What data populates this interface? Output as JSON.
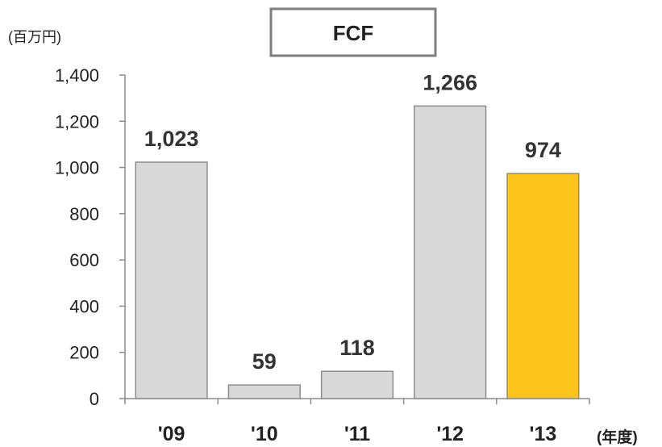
{
  "chart_data": {
    "type": "bar",
    "title": "FCF",
    "ylabel": "(百万円)",
    "xlabel": "(年度)",
    "categories": [
      "'09",
      "'10",
      "'11",
      "'12",
      "'13"
    ],
    "values": [
      1023,
      59,
      118,
      1266,
      974
    ],
    "value_labels": [
      "1,023",
      "59",
      "118",
      "1,266",
      "974"
    ],
    "ylim": [
      0,
      1400
    ],
    "yticks": [
      "0",
      "200",
      "400",
      "600",
      "800",
      "1,000",
      "1,200",
      "1,400"
    ],
    "bar_colors": [
      "#d9d9d9",
      "#d9d9d9",
      "#d9d9d9",
      "#d9d9d9",
      "#fcc41a"
    ],
    "bar_edge_color": "#8c8c8c",
    "grid": false,
    "legend": "none"
  }
}
